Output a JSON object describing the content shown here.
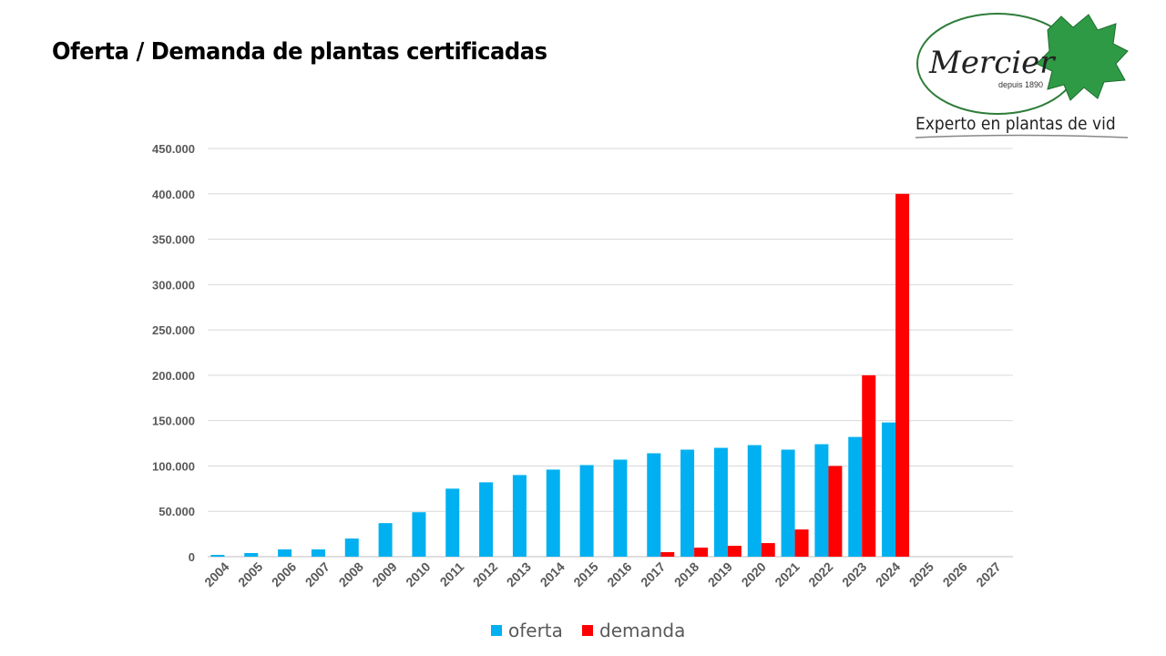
{
  "header": {
    "title": "Oferta / Demanda de plantas certificadas"
  },
  "logo": {
    "brand": "Mercier",
    "since": "depuis 1890",
    "tagline": "Experto en plantas de vid"
  },
  "chart_data": {
    "type": "bar",
    "title": "",
    "xlabel": "",
    "ylabel": "",
    "ylim": [
      0,
      450000
    ],
    "yticks": [
      "0",
      "50.000",
      "100.000",
      "150.000",
      "200.000",
      "250.000",
      "300.000",
      "350.000",
      "400.000",
      "450.000"
    ],
    "grid": true,
    "legend_position": "bottom",
    "categories": [
      "2004",
      "2005",
      "2006",
      "2007",
      "2008",
      "2009",
      "2010",
      "2011",
      "2012",
      "2013",
      "2014",
      "2015",
      "2016",
      "2017",
      "2018",
      "2019",
      "2020",
      "2021",
      "2022",
      "2023",
      "2024",
      "2025",
      "2026",
      "2027"
    ],
    "series": [
      {
        "name": "oferta",
        "color": "#00B0F0",
        "values": [
          2000,
          4000,
          8000,
          8000,
          20000,
          37000,
          49000,
          75000,
          82000,
          90000,
          96000,
          101000,
          107000,
          114000,
          118000,
          120000,
          123000,
          118000,
          124000,
          132000,
          148000,
          null,
          null,
          null
        ]
      },
      {
        "name": "demanda",
        "color": "#FF0000",
        "values": [
          null,
          null,
          null,
          null,
          null,
          null,
          null,
          null,
          null,
          null,
          null,
          null,
          null,
          5000,
          10000,
          12000,
          15000,
          30000,
          100000,
          200000,
          400000,
          null,
          null,
          null
        ]
      }
    ]
  }
}
